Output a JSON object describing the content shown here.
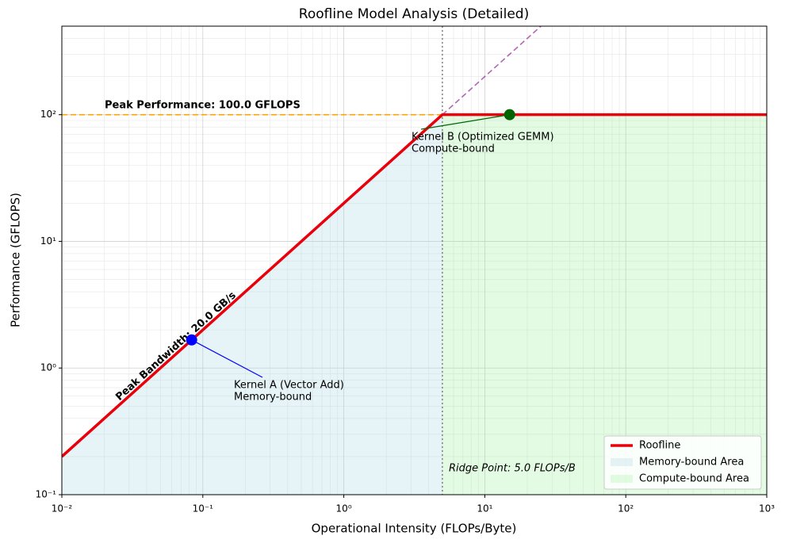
{
  "chart_data": {
    "type": "roofline",
    "title": "Roofline Model Analysis (Detailed)",
    "x_label": "Operational Intensity (FLOPs/Byte)",
    "y_label": "Performance (GFLOPS)",
    "log_x": true,
    "log_y": true,
    "grid": true,
    "minor_grid": true,
    "legend_loc": "lower right",
    "xlim": [
      0.01,
      1000
    ],
    "xticks": [
      {
        "value": 0.01,
        "label": "10⁻²"
      },
      {
        "value": 0.1,
        "label": "10⁻¹"
      },
      {
        "value": 1,
        "label": "10⁰"
      },
      {
        "value": 10,
        "label": "10¹"
      },
      {
        "value": 100,
        "label": "10²"
      },
      {
        "value": 1000,
        "label": "10³"
      }
    ],
    "ylim": [
      0.1,
      500
    ],
    "yticks": [
      {
        "value": 0.1,
        "label": "10⁻¹"
      },
      {
        "value": 1,
        "label": "10⁰"
      },
      {
        "value": 10,
        "label": "10¹"
      },
      {
        "value": 100,
        "label": "10²"
      }
    ],
    "series": [
      {
        "name": "Roofline",
        "color": "#e8000b",
        "x": [
          0.01,
          5,
          1000
        ],
        "values": [
          0.2,
          100,
          100
        ]
      }
    ],
    "areas": [
      {
        "name": "Memory-bound Area",
        "color": "#add8e6"
      },
      {
        "name": "Compute-bound Area",
        "color": "#90ee90"
      }
    ],
    "peak_performance": 100,
    "peak_performance_label": "Peak Performance: 100.0 GFLOPS",
    "peak_performance_color": "#ffa500",
    "peak_bandwidth": 20,
    "peak_bandwidth_label": "Peak Bandwidth: 20.0 GB/s",
    "peak_bandwidth_color": "#800080",
    "ridge_point": 5,
    "ridge_label": "Ridge Point: 5.0 FLOPs/B",
    "points": [
      {
        "name": "Kernel A (Vector Add)",
        "label": "Memory-bound",
        "x": 0.0833,
        "y": 1.667,
        "color": "#0000ff"
      },
      {
        "name": "Kernel B (Optimized GEMM)",
        "label": "Compute-bound",
        "x": 15,
        "y": 100,
        "color": "#006400"
      }
    ]
  }
}
